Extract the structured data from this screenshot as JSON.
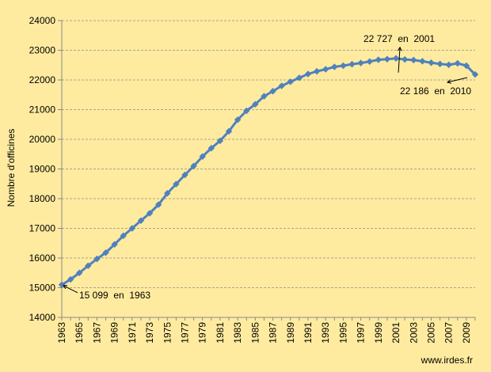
{
  "source_credit": "www.irdes.fr",
  "colors": {
    "background": "#FFEB9F",
    "series": "#4F81BD",
    "grid": "#8C8C8C"
  },
  "chart_data": {
    "type": "line",
    "title": "",
    "xlabel": "",
    "ylabel": "Nombre d'officines",
    "ylim": [
      14000,
      24000
    ],
    "y_ticks": [
      14000,
      15000,
      16000,
      17000,
      18000,
      19000,
      20000,
      21000,
      22000,
      23000,
      24000
    ],
    "x_ticks": [
      1963,
      1965,
      1967,
      1969,
      1971,
      1973,
      1975,
      1977,
      1979,
      1981,
      1983,
      1985,
      1987,
      1989,
      1991,
      1993,
      1995,
      1997,
      1999,
      2001,
      2003,
      2005,
      2007,
      2009
    ],
    "xlim": [
      1963,
      2010
    ],
    "grid": true,
    "marker": "diamond",
    "series": [
      {
        "x": [
          1963,
          1964,
          1965,
          1966,
          1967,
          1968,
          1969,
          1970,
          1971,
          1972,
          1973,
          1974,
          1975,
          1976,
          1977,
          1978,
          1979,
          1980,
          1981,
          1982,
          1983,
          1984,
          1985,
          1986,
          1987,
          1988,
          1989,
          1990,
          1991,
          1992,
          1993,
          1994,
          1995,
          1996,
          1997,
          1998,
          1999,
          2000,
          2001,
          2002,
          2003,
          2004,
          2005,
          2006,
          2007,
          2008,
          2009,
          2010
        ],
        "values": [
          15099,
          15280,
          15500,
          15740,
          15970,
          16180,
          16460,
          16750,
          17000,
          17260,
          17510,
          17800,
          18180,
          18490,
          18800,
          19100,
          19420,
          19700,
          19950,
          20270,
          20660,
          20960,
          21180,
          21450,
          21620,
          21800,
          21940,
          22070,
          22200,
          22290,
          22360,
          22440,
          22480,
          22530,
          22570,
          22620,
          22680,
          22700,
          22727,
          22690,
          22670,
          22630,
          22580,
          22540,
          22510,
          22560,
          22480,
          22186
        ]
      }
    ],
    "annotations": [
      {
        "text": "15 099  en  1963",
        "x": 1963,
        "y": 15099
      },
      {
        "text": "22 727  en  2001",
        "x": 2001,
        "y": 22727
      },
      {
        "text": "22 186  en  2010",
        "x": 2010,
        "y": 22186
      }
    ]
  }
}
